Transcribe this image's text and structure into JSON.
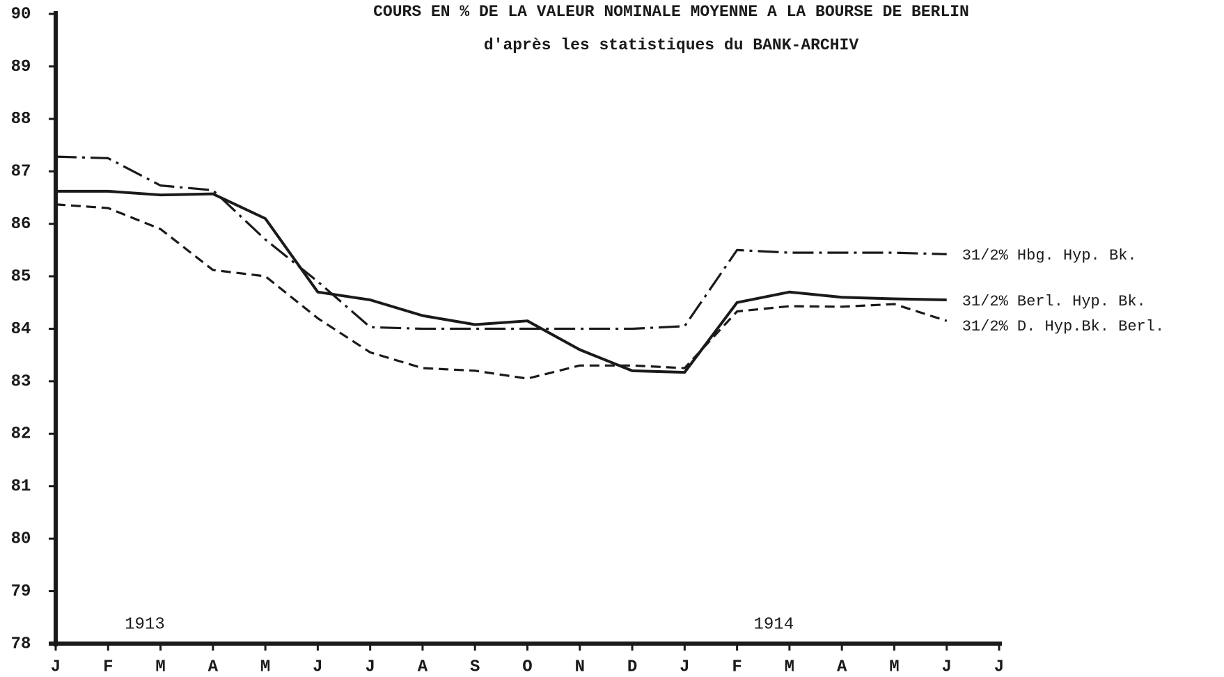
{
  "chart_data": {
    "type": "line",
    "title": "COURS EN % DE LA VALEUR NOMINALE MOYENNE A LA BOURSE DE BERLIN",
    "subtitle": "d'après les statistiques du BANK-ARCHIV",
    "categories": [
      "J",
      "F",
      "M",
      "A",
      "M",
      "J",
      "J",
      "A",
      "S",
      "O",
      "N",
      "D",
      "J",
      "F",
      "M",
      "A",
      "M",
      "J",
      "J"
    ],
    "year_labels": [
      "1913",
      "1914"
    ],
    "ylim": [
      78,
      90
    ],
    "yticks": [
      78,
      79,
      80,
      81,
      82,
      83,
      84,
      85,
      86,
      87,
      88,
      89,
      90
    ],
    "series": [
      {
        "name": "31/2% Hbg. Hyp. Bk.",
        "color": "#1a1a1a",
        "style": "dashdot",
        "values": [
          87.28,
          87.25,
          86.73,
          86.64,
          85.7,
          84.9,
          84.03,
          84.0,
          84.0,
          84.0,
          84.0,
          84.0,
          84.05,
          85.5,
          85.45,
          85.45,
          85.45,
          85.42,
          null
        ]
      },
      {
        "name": "31/2% Berl. Hyp. Bk.",
        "color": "#1a1a1a",
        "style": "solid",
        "values": [
          86.62,
          86.62,
          86.55,
          86.57,
          86.1,
          84.7,
          84.55,
          84.25,
          84.08,
          84.15,
          83.6,
          83.2,
          83.17,
          84.5,
          84.7,
          84.6,
          84.57,
          84.55,
          null
        ]
      },
      {
        "name": "31/2% D. Hyp.Bk. Berl.",
        "color": "#1a1a1a",
        "style": "dashed",
        "values": [
          86.37,
          86.3,
          85.9,
          85.12,
          85.0,
          84.2,
          83.55,
          83.25,
          83.2,
          83.05,
          83.3,
          83.3,
          83.25,
          84.33,
          84.43,
          84.42,
          84.47,
          84.15,
          null
        ]
      }
    ]
  }
}
